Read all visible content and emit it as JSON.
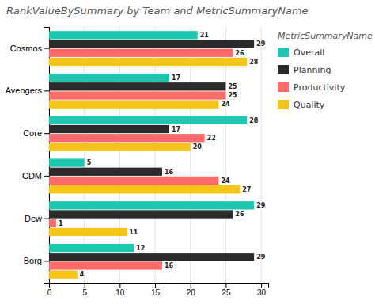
{
  "chart_data": {
    "type": "bar",
    "orientation": "horizontal",
    "title": "RankValueBySummary by Team and MetricSummaryName",
    "legend_title": "MetricSummaryName",
    "categories": [
      "Cosmos",
      "Avengers",
      "Core",
      "CDM",
      "Dew",
      "Borg"
    ],
    "series": [
      {
        "name": "Overall",
        "color": "#1ec8b0",
        "values": [
          21,
          17,
          28,
          5,
          29,
          12
        ]
      },
      {
        "name": "Planning",
        "color": "#2b2b2b",
        "values": [
          29,
          25,
          17,
          16,
          26,
          29
        ]
      },
      {
        "name": "Productivity",
        "color": "#ff6b6b",
        "values": [
          26,
          25,
          22,
          24,
          1,
          16
        ]
      },
      {
        "name": "Quality",
        "color": "#f5c518",
        "values": [
          28,
          24,
          20,
          27,
          11,
          4
        ]
      }
    ],
    "xlim": [
      0,
      31
    ],
    "xticks": [
      0,
      5,
      10,
      15,
      20,
      25,
      30
    ],
    "grid": true,
    "legend": "right",
    "data_labels": true
  }
}
